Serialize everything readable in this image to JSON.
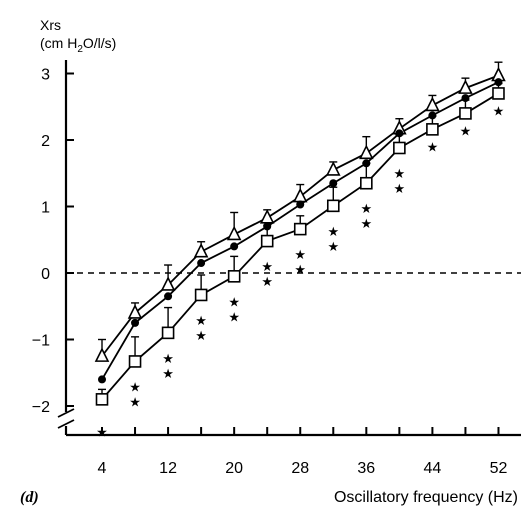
{
  "chart_data": {
    "type": "line",
    "panel_label": "(d)",
    "ylabel_line1": "Xrs",
    "ylabel_line2_pre": "(cm H",
    "ylabel_line2_sub": "2",
    "ylabel_line2_post": "O/l/s)",
    "xlabel": "Oscillatory frequency (Hz)",
    "x_ticks": [
      4,
      12,
      20,
      28,
      36,
      44,
      52
    ],
    "y_ticks": [
      -2,
      -1,
      0,
      1,
      2,
      3
    ],
    "xlim": [
      2,
      53
    ],
    "ylim": [
      -2.45,
      3.2
    ],
    "y_axis_break": true,
    "reference_line": {
      "y": 0,
      "style": "dashed"
    },
    "significance_marker": "★",
    "x": [
      4,
      8,
      12,
      16,
      20,
      24,
      28,
      32,
      36,
      40,
      44,
      48,
      52
    ],
    "series": [
      {
        "marker": "open-triangle",
        "values": [
          -1.25,
          -0.6,
          -0.18,
          0.32,
          0.58,
          0.83,
          1.15,
          1.55,
          1.8,
          2.17,
          2.52,
          2.78,
          2.97
        ],
        "error_up": [
          0.25,
          0.15,
          0.3,
          0.15,
          0.33,
          0.12,
          0.18,
          0.12,
          0.25,
          0.15,
          0.15,
          0.15,
          0.2
        ]
      },
      {
        "marker": "filled-circle",
        "values": [
          -1.6,
          -0.75,
          -0.35,
          0.15,
          0.4,
          0.7,
          1.03,
          1.35,
          1.65,
          2.1,
          2.37,
          2.63,
          2.87
        ],
        "error_up": []
      },
      {
        "marker": "open-square",
        "values": [
          -1.9,
          -1.33,
          -0.9,
          -0.33,
          -0.05,
          0.48,
          0.66,
          1.01,
          1.35,
          1.88,
          2.16,
          2.4,
          2.7
        ],
        "error_up": [
          0.15,
          0.37,
          0.38,
          0.3,
          0.3,
          0.24,
          0.2,
          0.28,
          0.3,
          0.2,
          0.2,
          0.2,
          0.15
        ]
      }
    ],
    "significance_stars": [
      1,
      2,
      2,
      2,
      2,
      2,
      2,
      2,
      2,
      2,
      1,
      1,
      1
    ]
  }
}
